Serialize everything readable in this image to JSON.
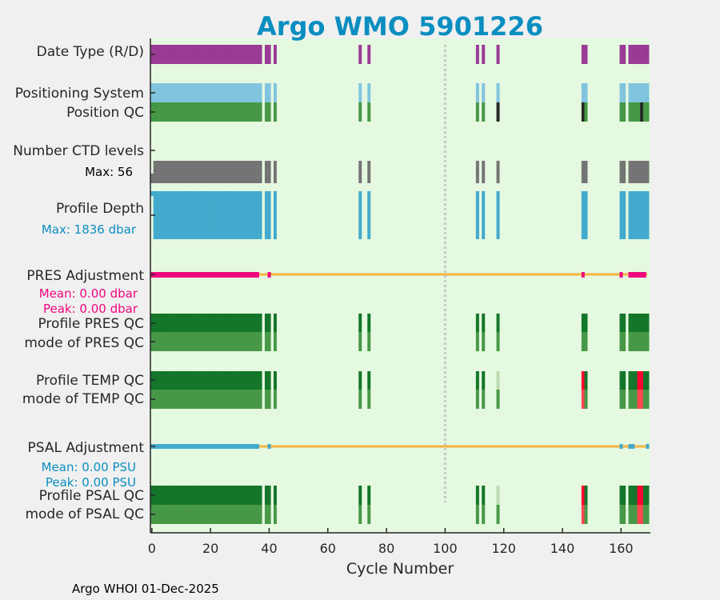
{
  "chart_data": {
    "type": "heatmap",
    "title": "Argo WMO 5901226",
    "xlabel": "Cycle Number",
    "footer": "Argo WHOI 01-Dec-2025",
    "xlim": [
      -0.5,
      170
    ],
    "xticks": [
      0,
      20,
      40,
      60,
      80,
      100,
      120,
      140,
      160
    ],
    "xtick_labels": [
      "0",
      "20",
      "40",
      "60",
      "80",
      "100",
      "120",
      "140",
      "160"
    ],
    "reference_line_cycle": 100,
    "cycles": [
      0,
      1,
      2,
      3,
      4,
      5,
      6,
      7,
      8,
      9,
      10,
      11,
      12,
      13,
      14,
      15,
      16,
      17,
      18,
      19,
      20,
      21,
      22,
      23,
      24,
      25,
      26,
      27,
      28,
      29,
      30,
      31,
      32,
      33,
      34,
      35,
      36,
      37,
      39,
      40,
      42,
      71,
      74,
      111,
      113,
      118,
      147,
      148,
      160,
      161,
      163,
      164,
      165,
      166,
      167,
      168,
      169
    ],
    "row_labels": {
      "date_type": "Date Type (R/D)",
      "positioning": "Positioning System",
      "position_qc": "Position QC",
      "ctd_levels": "Number CTD levels",
      "ctd_max": "Max: 56",
      "profile_depth": "Profile Depth",
      "depth_max": "Max: 1836 dbar",
      "pres_adj": "PRES Adjustment",
      "pres_mean": "Mean: 0.00 dbar",
      "pres_peak": "Peak: 0.00 dbar",
      "pres_qc": "Profile PRES QC",
      "pres_mode": "mode of PRES QC",
      "temp_qc": "Profile TEMP QC",
      "temp_mode": "mode of TEMP QC",
      "psal_adj": "PSAL Adjustment",
      "psal_mean": "Mean: 0.00 PSU",
      "psal_peak": "Peak: 0.00 PSU",
      "psal_qc": "Profile PSAL QC",
      "psal_mode": "mode of PSAL QC"
    },
    "ctd_levels_max": 56,
    "profile_depth_max_dbar": 1836,
    "pres_adjustment_mean": 0.0,
    "psal_adjustment_mean": 0.0,
    "pres_adjustment_marked_cycles": [
      0,
      1,
      2,
      3,
      4,
      5,
      6,
      7,
      8,
      9,
      10,
      11,
      12,
      13,
      14,
      15,
      16,
      17,
      18,
      19,
      20,
      21,
      22,
      23,
      24,
      25,
      26,
      27,
      28,
      29,
      30,
      31,
      32,
      33,
      34,
      35,
      36,
      40,
      147,
      160,
      163,
      164,
      165,
      166,
      167,
      168
    ],
    "psal_adjustment_marked_cycles": [
      0,
      1,
      2,
      3,
      4,
      5,
      6,
      7,
      8,
      9,
      10,
      11,
      12,
      13,
      14,
      15,
      16,
      17,
      18,
      19,
      20,
      21,
      22,
      23,
      24,
      25,
      26,
      27,
      28,
      29,
      30,
      31,
      32,
      33,
      34,
      35,
      36,
      40,
      160,
      163,
      164,
      169
    ],
    "position_qc_bad_cycles": [
      118,
      147,
      167
    ],
    "temp_qc_overrides": {
      "118": "probably_good",
      "147": "bad",
      "166": "bad",
      "167": "bad"
    },
    "temp_mode_overrides": {
      "147": "bad",
      "166": "bad",
      "167": "bad"
    },
    "psal_qc_overrides": {
      "118": "probably_good",
      "147": "bad",
      "166": "bad",
      "167": "bad"
    },
    "psal_mode_overrides": {
      "147": "bad",
      "166": "bad",
      "167": "bad"
    },
    "colors": {
      "title": "#0b8ec0",
      "plot_bg": "#e5f8e0",
      "date_type": "#9b3a96",
      "positioning": "#80c4df",
      "qc_good_mode": "#479846",
      "qc_good": "#137629",
      "qc_probably_good": "#bddbb0",
      "qc_bad": "#ff0030",
      "qc_bad_mode": "#ff4650",
      "position_bad": "#262626",
      "ctd": "#747474",
      "depth": "#43aacd",
      "pres_adj": "#f0067f",
      "adj_line": "#f5b53e",
      "psal_adj": "#43aacd"
    }
  }
}
